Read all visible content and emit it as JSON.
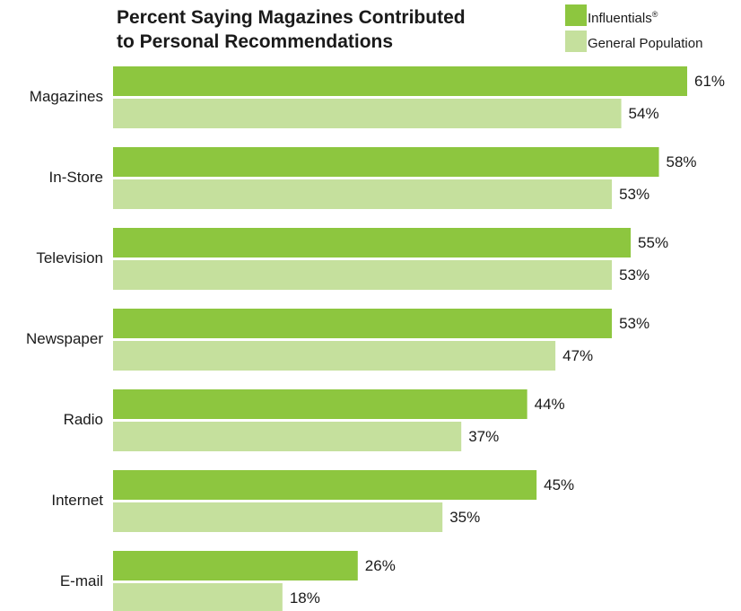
{
  "chart_data": {
    "type": "bar",
    "orientation": "horizontal",
    "title_lines": [
      "Percent Saying Magazines Contributed",
      "to Personal Recommendations"
    ],
    "categories": [
      "Magazines",
      "In-Store",
      "Television",
      "Newspaper",
      "Radio",
      "Internet",
      "E-mail"
    ],
    "series": [
      {
        "name": "Influentials",
        "name_mark": "®",
        "color": "#8dc63f",
        "values": [
          61,
          58,
          55,
          53,
          44,
          45,
          26
        ]
      },
      {
        "name": "General Population",
        "color": "#c5e09d",
        "values": [
          54,
          53,
          53,
          47,
          37,
          35,
          18
        ]
      }
    ],
    "value_suffix": "%",
    "xlim": [
      0,
      61
    ],
    "grid": false,
    "legend_position": "top-right"
  }
}
